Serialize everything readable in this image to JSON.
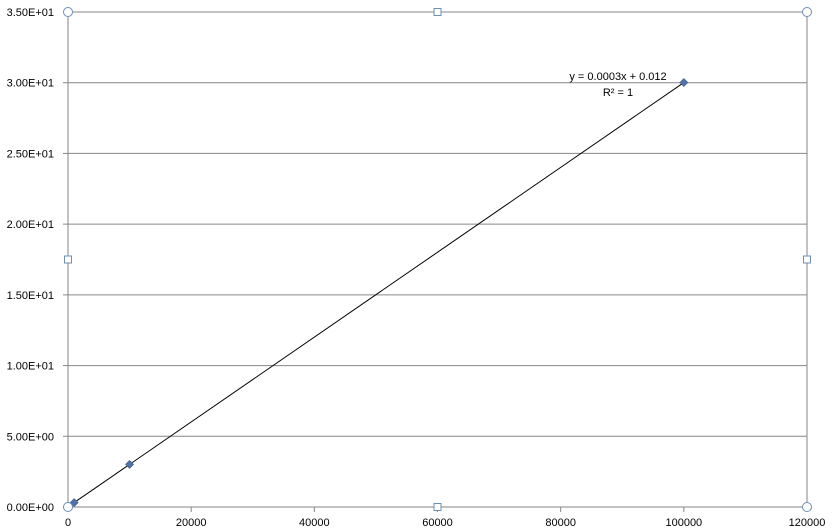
{
  "chart_data": {
    "type": "scatter",
    "title": "",
    "xlabel": "",
    "ylabel": "",
    "xlim": [
      0,
      120000
    ],
    "ylim": [
      0,
      35
    ],
    "x_ticks": [
      0,
      20000,
      40000,
      60000,
      80000,
      100000,
      120000
    ],
    "x_tick_labels": [
      "0",
      "20000",
      "40000",
      "60000",
      "80000",
      "100000",
      "120000"
    ],
    "y_ticks": [
      0,
      5,
      10,
      15,
      20,
      25,
      30,
      35
    ],
    "y_tick_labels": [
      "0.00E+00",
      "5.00E+00",
      "1.00E+01",
      "1.50E+01",
      "2.00E+01",
      "2.50E+01",
      "3.00E+01",
      "3.50E+01"
    ],
    "grid": "horizontal",
    "series": [
      {
        "x": [
          100,
          1000,
          10000,
          100000
        ],
        "y": [
          0.042,
          0.312,
          3.012,
          30.012
        ],
        "color": "#4f73aa",
        "marker": "diamond"
      }
    ],
    "trendline": {
      "type": "linear",
      "slope": 0.0003,
      "intercept": 0.012,
      "x_range": [
        0,
        100000
      ],
      "color": "#000000",
      "equation": "y = 0.0003x + 0.012",
      "r_squared": "R² = 1"
    }
  }
}
